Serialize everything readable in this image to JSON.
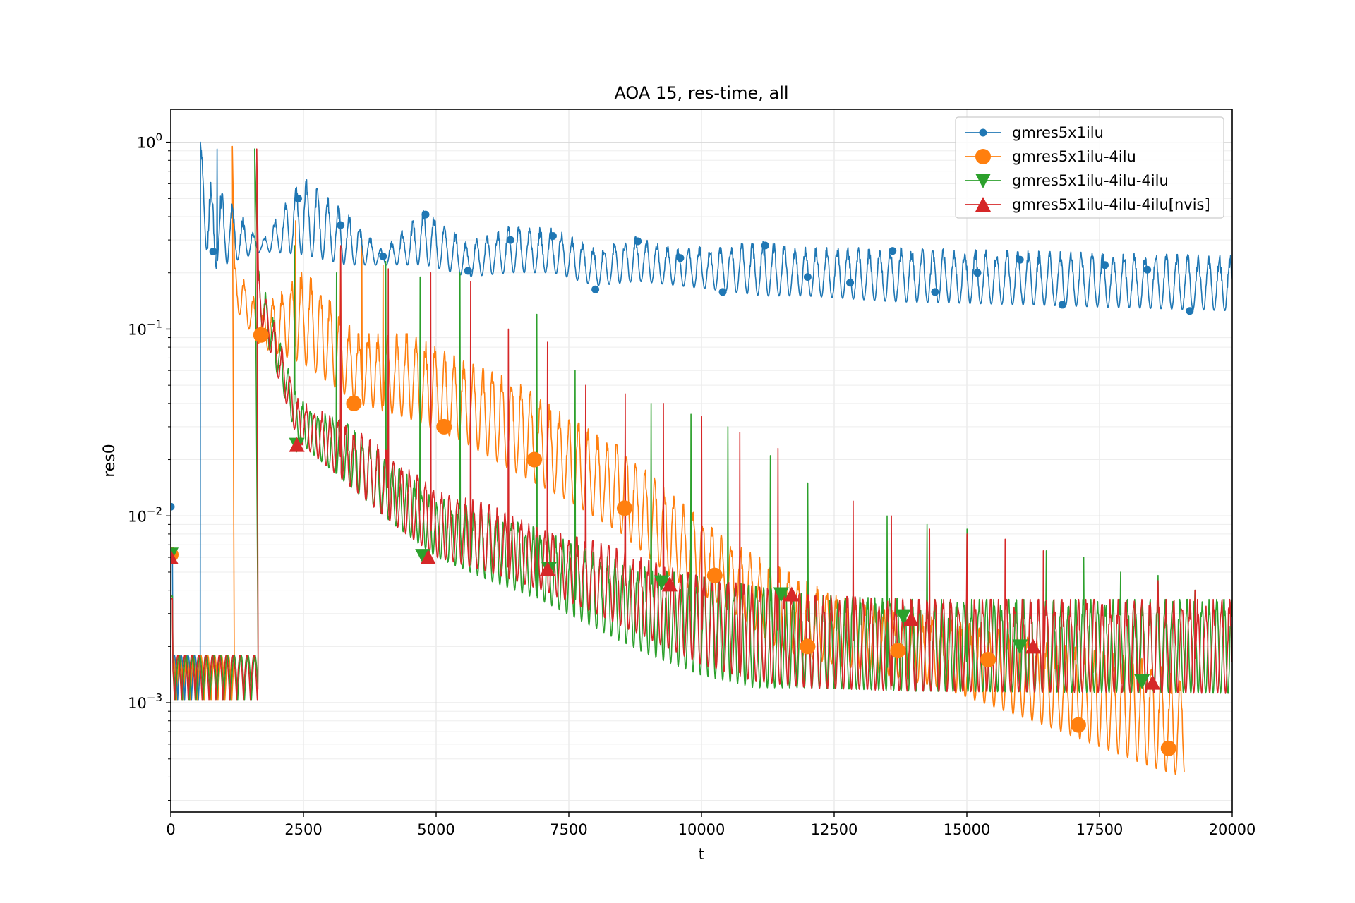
{
  "chart_data": {
    "type": "line",
    "title": "AOA 15, res-time, all",
    "xlabel": "t",
    "ylabel": "res0",
    "xlim": [
      0,
      20000
    ],
    "ylim": [
      0.00026,
      1.5
    ],
    "yscale": "log",
    "grid": "on (major and minor)",
    "legend_position": "top-right",
    "x_ticks": [
      "0",
      "2500",
      "5000",
      "7500",
      "10000",
      "12500",
      "15000",
      "17500",
      "20000"
    ],
    "y_ticks": [
      {
        "base": "10",
        "exp": "0"
      },
      {
        "base": "10",
        "exp": "−1"
      },
      {
        "base": "10",
        "exp": "−2"
      },
      {
        "base": "10",
        "exp": "−3"
      }
    ],
    "series": [
      {
        "name": "gmres5x1ilu",
        "color": "#1f77b4",
        "marker": "circle-small",
        "markers": [
          [
            0,
            0.0112
          ],
          [
            800,
            0.26
          ],
          [
            2400,
            0.5
          ],
          [
            3200,
            0.36
          ],
          [
            4000,
            0.245
          ],
          [
            4800,
            0.41
          ],
          [
            5600,
            0.205
          ],
          [
            6400,
            0.3
          ],
          [
            7200,
            0.315
          ],
          [
            8000,
            0.163
          ],
          [
            8800,
            0.295
          ],
          [
            9600,
            0.24
          ],
          [
            10400,
            0.158
          ],
          [
            11200,
            0.28
          ],
          [
            12000,
            0.19
          ],
          [
            12800,
            0.177
          ],
          [
            13600,
            0.262
          ],
          [
            14400,
            0.158
          ],
          [
            15200,
            0.2
          ],
          [
            16000,
            0.235
          ],
          [
            16800,
            0.135
          ],
          [
            17600,
            0.22
          ],
          [
            18400,
            0.208
          ],
          [
            19200,
            0.125
          ]
        ],
        "envelope": [
          [
            560,
            0.7,
            1.0
          ],
          [
            700,
            0.2,
            0.6
          ],
          [
            1000,
            0.22,
            0.5
          ],
          [
            1700,
            0.26,
            0.29
          ],
          [
            2500,
            0.25,
            0.62
          ],
          [
            3300,
            0.22,
            0.4
          ],
          [
            4000,
            0.22,
            0.26
          ],
          [
            4800,
            0.22,
            0.42
          ],
          [
            5600,
            0.19,
            0.28
          ],
          [
            6400,
            0.2,
            0.34
          ],
          [
            7200,
            0.2,
            0.33
          ],
          [
            8000,
            0.17,
            0.26
          ],
          [
            8800,
            0.18,
            0.3
          ],
          [
            9600,
            0.17,
            0.26
          ],
          [
            10400,
            0.16,
            0.27
          ],
          [
            11200,
            0.15,
            0.28
          ],
          [
            12000,
            0.15,
            0.26
          ],
          [
            13600,
            0.14,
            0.26
          ],
          [
            16000,
            0.135,
            0.25
          ],
          [
            20000,
            0.125,
            0.235
          ]
        ],
        "period": 200
      },
      {
        "name": "gmres5x1ilu-4ilu",
        "color": "#ff7f0e",
        "marker": "circle-large",
        "markers": [
          [
            0,
            0.0062
          ],
          [
            1700,
            0.093
          ],
          [
            3450,
            0.04
          ],
          [
            5150,
            0.03
          ],
          [
            6850,
            0.02
          ],
          [
            8550,
            0.011
          ],
          [
            10250,
            0.0048
          ],
          [
            12000,
            0.002
          ],
          [
            13700,
            0.0019
          ],
          [
            15400,
            0.0017
          ],
          [
            17100,
            0.00076
          ],
          [
            18800,
            0.00057
          ]
        ],
        "envelope": [
          [
            1200,
            0.13,
            0.22
          ],
          [
            1700,
            0.08,
            0.12
          ],
          [
            2500,
            0.065,
            0.2
          ],
          [
            3500,
            0.04,
            0.09
          ],
          [
            4500,
            0.033,
            0.09
          ],
          [
            5500,
            0.025,
            0.065
          ],
          [
            6500,
            0.017,
            0.05
          ],
          [
            7500,
            0.012,
            0.032
          ],
          [
            8500,
            0.008,
            0.022
          ],
          [
            9500,
            0.0045,
            0.012
          ],
          [
            10500,
            0.0032,
            0.007
          ],
          [
            11500,
            0.0019,
            0.005
          ],
          [
            12500,
            0.0016,
            0.0036
          ],
          [
            13500,
            0.0014,
            0.003
          ],
          [
            14500,
            0.0012,
            0.0027
          ],
          [
            15500,
            0.00095,
            0.0024
          ],
          [
            16500,
            0.00075,
            0.002
          ],
          [
            17500,
            0.00058,
            0.0018
          ],
          [
            18500,
            0.00045,
            0.0016
          ],
          [
            19100,
            0.0004,
            0.0012
          ]
        ],
        "period": 180
      },
      {
        "name": "gmres5x1ilu-4ilu-4ilu",
        "color": "#2ca02c",
        "marker": "triangle-down",
        "markers": [
          [
            0,
            0.0062
          ],
          [
            2375,
            0.024
          ],
          [
            4750,
            0.0061
          ],
          [
            7125,
            0.0052
          ],
          [
            9250,
            0.0044
          ],
          [
            11500,
            0.0038
          ],
          [
            13800,
            0.0029
          ],
          [
            16000,
            0.002
          ],
          [
            18300,
            0.0013
          ]
        ],
        "envelope": [
          [
            1650,
            0.12,
            0.2
          ],
          [
            2400,
            0.025,
            0.04
          ],
          [
            3300,
            0.015,
            0.03
          ],
          [
            4200,
            0.009,
            0.018
          ],
          [
            5000,
            0.006,
            0.012
          ],
          [
            6000,
            0.0045,
            0.01
          ],
          [
            7000,
            0.0035,
            0.008
          ],
          [
            8000,
            0.0025,
            0.006
          ],
          [
            9000,
            0.0018,
            0.005
          ],
          [
            10000,
            0.0014,
            0.0045
          ],
          [
            11000,
            0.0012,
            0.004
          ],
          [
            12000,
            0.0012,
            0.0036
          ],
          [
            14000,
            0.00115,
            0.0034
          ],
          [
            20000,
            0.00112,
            0.0034
          ]
        ],
        "period": 140
      },
      {
        "name": "gmres5x1ilu-4ilu-4ilu[nvis]",
        "color": "#d62728",
        "marker": "triangle-up",
        "markers": [
          [
            0,
            0.006
          ],
          [
            2375,
            0.024
          ],
          [
            4850,
            0.006
          ],
          [
            7100,
            0.0052
          ],
          [
            9400,
            0.0043
          ],
          [
            11700,
            0.0038
          ],
          [
            13950,
            0.0028
          ],
          [
            16250,
            0.002
          ],
          [
            18500,
            0.00128
          ]
        ],
        "envelope": [
          [
            1650,
            0.12,
            0.2
          ],
          [
            2400,
            0.025,
            0.04
          ],
          [
            3300,
            0.015,
            0.03
          ],
          [
            4200,
            0.009,
            0.02
          ],
          [
            5000,
            0.006,
            0.013
          ],
          [
            6000,
            0.005,
            0.011
          ],
          [
            7000,
            0.004,
            0.008
          ],
          [
            8000,
            0.003,
            0.007
          ],
          [
            9000,
            0.0022,
            0.0055
          ],
          [
            10000,
            0.0016,
            0.0045
          ],
          [
            11000,
            0.0013,
            0.004
          ],
          [
            12000,
            0.0012,
            0.0036
          ],
          [
            14000,
            0.00115,
            0.0034
          ],
          [
            20000,
            0.00112,
            0.0034
          ]
        ],
        "period": 150
      }
    ],
    "start_noise_region": {
      "x": [
        0,
        1620
      ],
      "ylow": 0.0006,
      "yhigh": 0.0018
    },
    "spikes": [
      {
        "series": 0,
        "points": [
          [
            560,
            1.0
          ],
          [
            870,
            0.92
          ]
        ]
      },
      {
        "series": 1,
        "points": [
          [
            1160,
            0.95
          ],
          [
            2350,
            0.38
          ],
          [
            3200,
            0.27
          ],
          [
            3600,
            0.3
          ],
          [
            4000,
            0.22
          ]
        ]
      },
      {
        "series": 2,
        "points": [
          [
            1580,
            0.92
          ],
          [
            2330,
            0.28
          ],
          [
            3120,
            0.2
          ],
          [
            4050,
            0.23
          ],
          [
            4700,
            0.19
          ],
          [
            5450,
            0.2
          ],
          [
            6150,
            0.16
          ],
          [
            6900,
            0.12
          ],
          [
            7620,
            0.06
          ],
          [
            8350,
            0.05
          ],
          [
            9050,
            0.04
          ],
          [
            9800,
            0.035
          ],
          [
            10500,
            0.03
          ],
          [
            11300,
            0.021
          ],
          [
            12000,
            0.015
          ],
          [
            12750,
            0.012
          ],
          [
            13500,
            0.01
          ],
          [
            14250,
            0.009
          ],
          [
            15000,
            0.0085
          ],
          [
            15750,
            0.008
          ],
          [
            16500,
            0.0065
          ],
          [
            17200,
            0.006
          ],
          [
            17900,
            0.005
          ],
          [
            18600,
            0.0048
          ],
          [
            19300,
            0.004
          ]
        ]
      },
      {
        "series": 3,
        "points": [
          [
            1620,
            0.92
          ],
          [
            2430,
            0.32
          ],
          [
            3200,
            0.28
          ],
          [
            4100,
            0.21
          ],
          [
            4900,
            0.2
          ],
          [
            5650,
            0.18
          ],
          [
            6360,
            0.1
          ],
          [
            7100,
            0.085
          ],
          [
            7820,
            0.05
          ],
          [
            8560,
            0.045
          ],
          [
            9280,
            0.04
          ],
          [
            10000,
            0.034
          ],
          [
            10720,
            0.028
          ],
          [
            11440,
            0.023
          ],
          [
            12150,
            0.016
          ],
          [
            12860,
            0.012
          ],
          [
            13580,
            0.01
          ],
          [
            14300,
            0.0085
          ],
          [
            15000,
            0.008
          ],
          [
            15720,
            0.0075
          ],
          [
            16440,
            0.0065
          ],
          [
            17150,
            0.006
          ],
          [
            17870,
            0.0052
          ],
          [
            18600,
            0.0045
          ],
          [
            19300,
            0.004
          ]
        ]
      }
    ]
  }
}
